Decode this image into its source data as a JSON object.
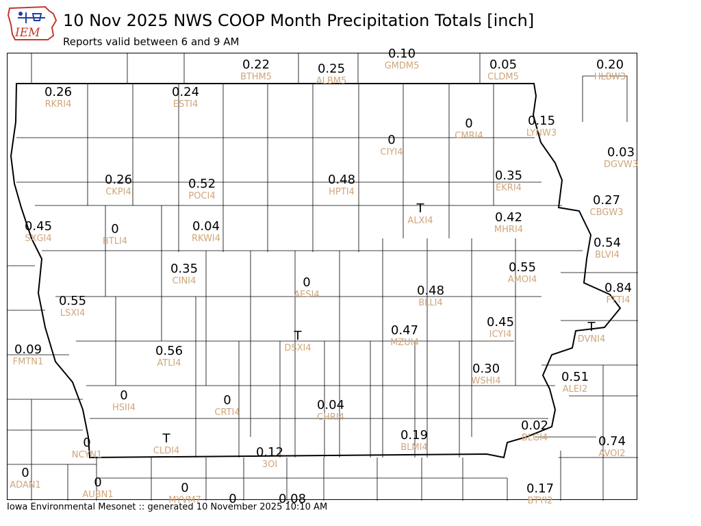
{
  "header": {
    "title": "10 Nov 2025 NWS COOP Month Precipitation Totals [inch]",
    "subtitle": "Reports valid between 6 and 9 AM",
    "logo_text": "IEM"
  },
  "footer": {
    "text": "Iowa Environmental Mesonet :: generated 10 November 2025 10:10 AM"
  },
  "colors": {
    "value_text": "#000000",
    "station_text": "#cfa57a",
    "county_lines": "#000000",
    "logo_red": "#c0392b",
    "logo_blue": "#1f3fa0"
  },
  "map": {
    "units": "inch",
    "stations": [
      {
        "id": "BTHM5",
        "value": "0.22"
      },
      {
        "id": "ALBM5",
        "value": "0.25"
      },
      {
        "id": "GMDM5",
        "value": "0.10"
      },
      {
        "id": "CLDM5",
        "value": "0.05"
      },
      {
        "id": "HLBW3",
        "value": "0.20"
      },
      {
        "id": "RKRI4",
        "value": "0.26"
      },
      {
        "id": "ESTI4",
        "value": "0.24"
      },
      {
        "id": "CIYI4",
        "value": "0"
      },
      {
        "id": "CMRI4",
        "value": "0"
      },
      {
        "id": "LYNW3",
        "value": "0.15"
      },
      {
        "id": "DGVW3",
        "value": "0.03"
      },
      {
        "id": "CKPI4",
        "value": "0.26"
      },
      {
        "id": "POCI4",
        "value": "0.52"
      },
      {
        "id": "HPTI4",
        "value": "0.48"
      },
      {
        "id": "EKRI4",
        "value": "0.35"
      },
      {
        "id": "CBGW3",
        "value": "0.27"
      },
      {
        "id": "SXGI4",
        "value": "0.45"
      },
      {
        "id": "BTLI4",
        "value": "0"
      },
      {
        "id": "RKWI4",
        "value": "0.04"
      },
      {
        "id": "ALXI4",
        "value": "T"
      },
      {
        "id": "MHRI4",
        "value": "0.42"
      },
      {
        "id": "BLVI4",
        "value": "0.54"
      },
      {
        "id": "CINI4",
        "value": "0.35"
      },
      {
        "id": "AESI4",
        "value": "0"
      },
      {
        "id": "AMOI4",
        "value": "0.55"
      },
      {
        "id": "FTTI4",
        "value": "0.84"
      },
      {
        "id": "LSXI4",
        "value": "0.55"
      },
      {
        "id": "BLLI4",
        "value": "0.48"
      },
      {
        "id": "ICYI4",
        "value": "0.45"
      },
      {
        "id": "DVNI4",
        "value": "T"
      },
      {
        "id": "FMTN1",
        "value": "0.09"
      },
      {
        "id": "ATLI4",
        "value": "0.56"
      },
      {
        "id": "DSXI4",
        "value": "T"
      },
      {
        "id": "MZUI4",
        "value": "0.47"
      },
      {
        "id": "WSHI4",
        "value": "0.30"
      },
      {
        "id": "ALEI2",
        "value": "0.51"
      },
      {
        "id": "HSII4",
        "value": "0"
      },
      {
        "id": "CRTI4",
        "value": "0"
      },
      {
        "id": "CHRI4",
        "value": "0.04"
      },
      {
        "id": "NCYN1",
        "value": "0"
      },
      {
        "id": "CLDI4",
        "value": "T"
      },
      {
        "id": "BLMI4",
        "value": "0.19"
      },
      {
        "id": "BLGI4",
        "value": "0.02"
      },
      {
        "id": "AVOI2",
        "value": "0.74"
      },
      {
        "id": "3OI",
        "value": "0.12"
      },
      {
        "id": "ADAN1",
        "value": "0"
      },
      {
        "id": "AUBN1",
        "value": "0"
      },
      {
        "id": "MYVM7",
        "value": "0"
      },
      {
        "id": "BTYI2",
        "value": "0.17"
      },
      {
        "id": "",
        "value": "0"
      },
      {
        "id": "",
        "value": "0.08"
      }
    ]
  }
}
